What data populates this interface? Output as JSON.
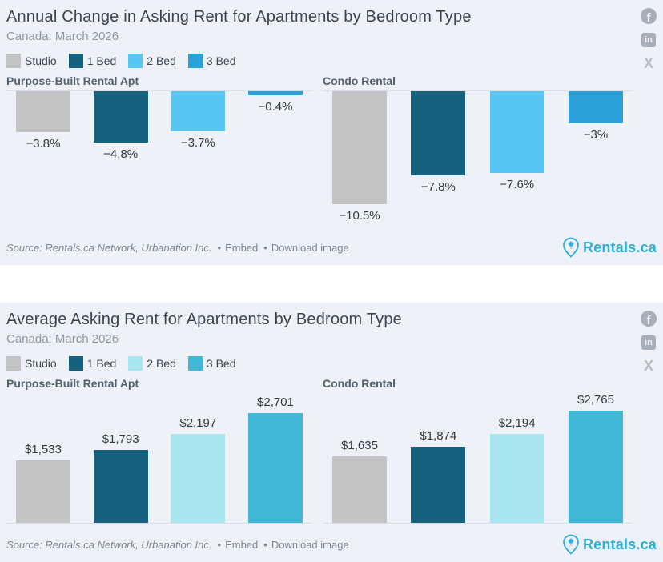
{
  "brand": {
    "name": "Rentals.ca",
    "color": "#2eafd6"
  },
  "footer": {
    "source": "Source: Rentals.ca Network, Urbanation Inc.",
    "separator": "•",
    "embed_label": "Embed",
    "download_label": "Download image"
  },
  "social": [
    {
      "name": "facebook",
      "glyph": "f"
    },
    {
      "name": "linkedin",
      "glyph": "in"
    },
    {
      "name": "x",
      "glyph": "X"
    }
  ],
  "chart_data": [
    {
      "type": "bar",
      "title": "Annual Change in Asking Rent for Apartments by Bedroom Type",
      "subtitle": "Canada: March 2026",
      "categories": [
        "Purpose-Built Rental Apt",
        "Condo Rental"
      ],
      "series": [
        {
          "name": "Studio",
          "color": "#c4c4c4",
          "values": [
            -3.8,
            -10.5
          ],
          "labels": [
            "−3.8%",
            "−10.5%"
          ]
        },
        {
          "name": "1 Bed",
          "color": "#16617e",
          "values": [
            -4.8,
            -7.8
          ],
          "labels": [
            "−4.8%",
            "−7.8%"
          ]
        },
        {
          "name": "2 Bed",
          "color": "#58c6f3",
          "values": [
            -3.7,
            -7.6
          ],
          "labels": [
            "−3.7%",
            "−7.6%"
          ]
        },
        {
          "name": "3 Bed",
          "color": "#2ba0d8",
          "values": [
            -0.4,
            -3.0
          ],
          "labels": [
            "−0.4%",
            "−3%"
          ]
        }
      ],
      "unit": "%",
      "ylim": [
        -11,
        0
      ],
      "bar_direction": "down",
      "legend_position": "top-left",
      "grid": false
    },
    {
      "type": "bar",
      "title": "Average Asking Rent for Apartments by Bedroom Type",
      "subtitle": "Canada: March 2026",
      "categories": [
        "Purpose-Built Rental Apt",
        "Condo Rental"
      ],
      "series": [
        {
          "name": "Studio",
          "color": "#c4c4c4",
          "values": [
            1533,
            1635
          ],
          "labels": [
            "$1,533",
            "$1,635"
          ]
        },
        {
          "name": "1 Bed",
          "color": "#16617e",
          "values": [
            1793,
            1874
          ],
          "labels": [
            "$1,793",
            "$1,874"
          ]
        },
        {
          "name": "2 Bed",
          "color": "#a9e6ef",
          "values": [
            2197,
            2194
          ],
          "labels": [
            "$2,197",
            "$2,194"
          ]
        },
        {
          "name": "3 Bed",
          "color": "#41b8d5",
          "values": [
            2701,
            2765
          ],
          "labels": [
            "$2,701",
            "$2,765"
          ]
        }
      ],
      "unit": "CAD $",
      "ylim": [
        0,
        2800
      ],
      "bar_direction": "up",
      "legend_position": "top-left",
      "grid": false
    }
  ]
}
